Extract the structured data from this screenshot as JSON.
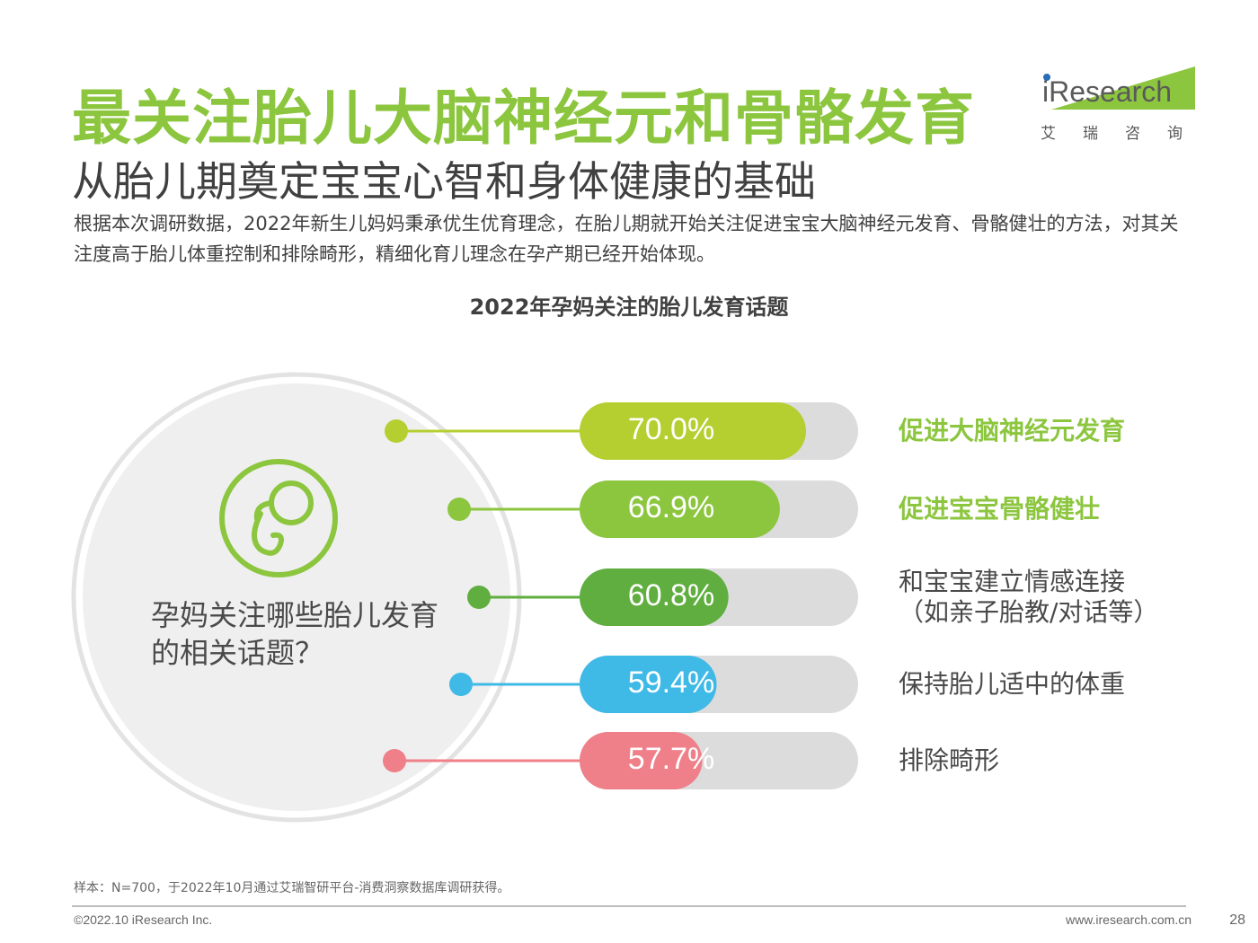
{
  "title": "最关注胎儿大脑神经元和骨骼发育",
  "subtitle": "从胎儿期奠定宝宝心智和身体健康的基础",
  "body_text": "根据本次调研数据，2022年新生儿妈妈秉承优生优育理念，在胎儿期就开始关注促进宝宝大脑神经元发育、骨骼健壮的方法，对其关注度高于胎儿体重控制和排除畸形，精细化育儿理念在孕产期已经开始体现。",
  "logo": {
    "word": "iResearch",
    "chinese": "艾瑞咨询"
  },
  "question": "孕妈关注哪些胎儿发育的相关话题？",
  "icon": "fetus-icon",
  "colors": {
    "brand_green": "#8cc63f",
    "track": "#dcdcdc",
    "bars": [
      "#b5cf31",
      "#8cc63f",
      "#5fae3f",
      "#3fb9e6",
      "#ef7f88"
    ]
  },
  "chart_data": {
    "type": "bar",
    "orientation": "horizontal",
    "title": "2022年孕妈关注的胎儿发育话题",
    "categories": [
      "促进大脑神经元发育",
      "促进宝宝骨骼健壮",
      "和宝宝建立情感连接（如亲子胎教/对话等）",
      "保持胎儿适中的体重",
      "排除畸形"
    ],
    "label_lines": [
      [
        "促进大脑神经元发育"
      ],
      [
        "促进宝宝骨骼健壮"
      ],
      [
        "和宝宝建立情感连接",
        "（如亲子胎教/对话等）"
      ],
      [
        "保持胎儿适中的体重"
      ],
      [
        "排除畸形"
      ]
    ],
    "highlighted": [
      true,
      true,
      false,
      false,
      false
    ],
    "values": [
      70.0,
      66.9,
      60.8,
      59.4,
      57.7
    ],
    "value_labels": [
      "70.0%",
      "66.9%",
      "60.8%",
      "59.4%",
      "57.7%"
    ],
    "unit": "%"
  },
  "footer": {
    "note": "样本：N=700，于2022年10月通过艾瑞智研平台-消费洞察数据库调研获得。",
    "copyright": "©2022.10 iResearch Inc.",
    "site": "www.iresearch.com.cn",
    "page": "28"
  }
}
